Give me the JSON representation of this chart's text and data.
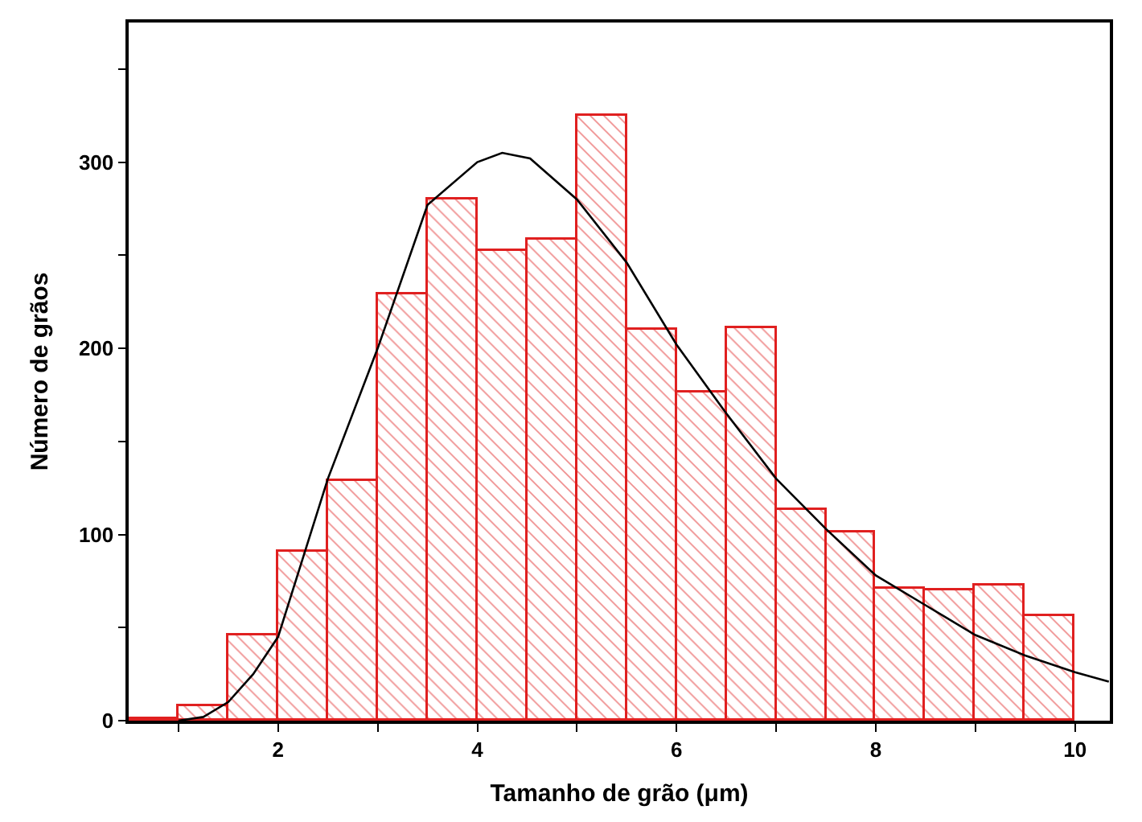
{
  "chart_data": {
    "type": "histogram",
    "xlabel": "Tamanho de grão (μm)",
    "ylabel": "Número de grãos",
    "bins": [
      0.5,
      1,
      1.5,
      2,
      2.5,
      3,
      3.5,
      4,
      4.5,
      5,
      5.5,
      6,
      6.5,
      7,
      7.5,
      8,
      8.5,
      9,
      9.5,
      10
    ],
    "values": [
      1,
      8,
      46,
      91,
      129,
      229,
      280,
      252,
      258,
      325,
      210,
      176,
      211,
      113,
      101,
      71,
      70,
      73,
      56
    ],
    "color": "#e02020",
    "series": [
      {
        "type": "line",
        "color": "#000000",
        "x": [
          1.0,
          1.25,
          1.5,
          1.75,
          2,
          2.5,
          3,
          3.5,
          4,
          4.25,
          4.53,
          5,
          5.5,
          6,
          6.5,
          7,
          7.5,
          8,
          8.5,
          9,
          9.5,
          10,
          10.34
        ],
        "values": [
          0,
          2,
          10,
          25,
          45,
          130,
          200,
          277,
          300,
          305,
          302,
          280,
          246,
          202,
          165,
          130,
          103,
          78,
          62,
          46,
          35,
          26,
          21
        ]
      }
    ],
    "xlim": [
      0.5,
      10.35
    ],
    "ylim": [
      0,
      375
    ],
    "xticks": [
      {
        "value": 1,
        "label": null
      },
      2,
      {
        "value": 3,
        "label": null
      },
      4,
      {
        "value": 5,
        "label": null
      },
      6,
      {
        "value": 7,
        "label": null
      },
      8,
      {
        "value": 9,
        "label": null
      },
      10
    ],
    "yticks": [
      0,
      {
        "value": 50,
        "label": null
      },
      100,
      {
        "value": 150,
        "label": null
      },
      200,
      {
        "value": 250,
        "label": null
      },
      300,
      {
        "value": 350,
        "label": null
      }
    ]
  }
}
